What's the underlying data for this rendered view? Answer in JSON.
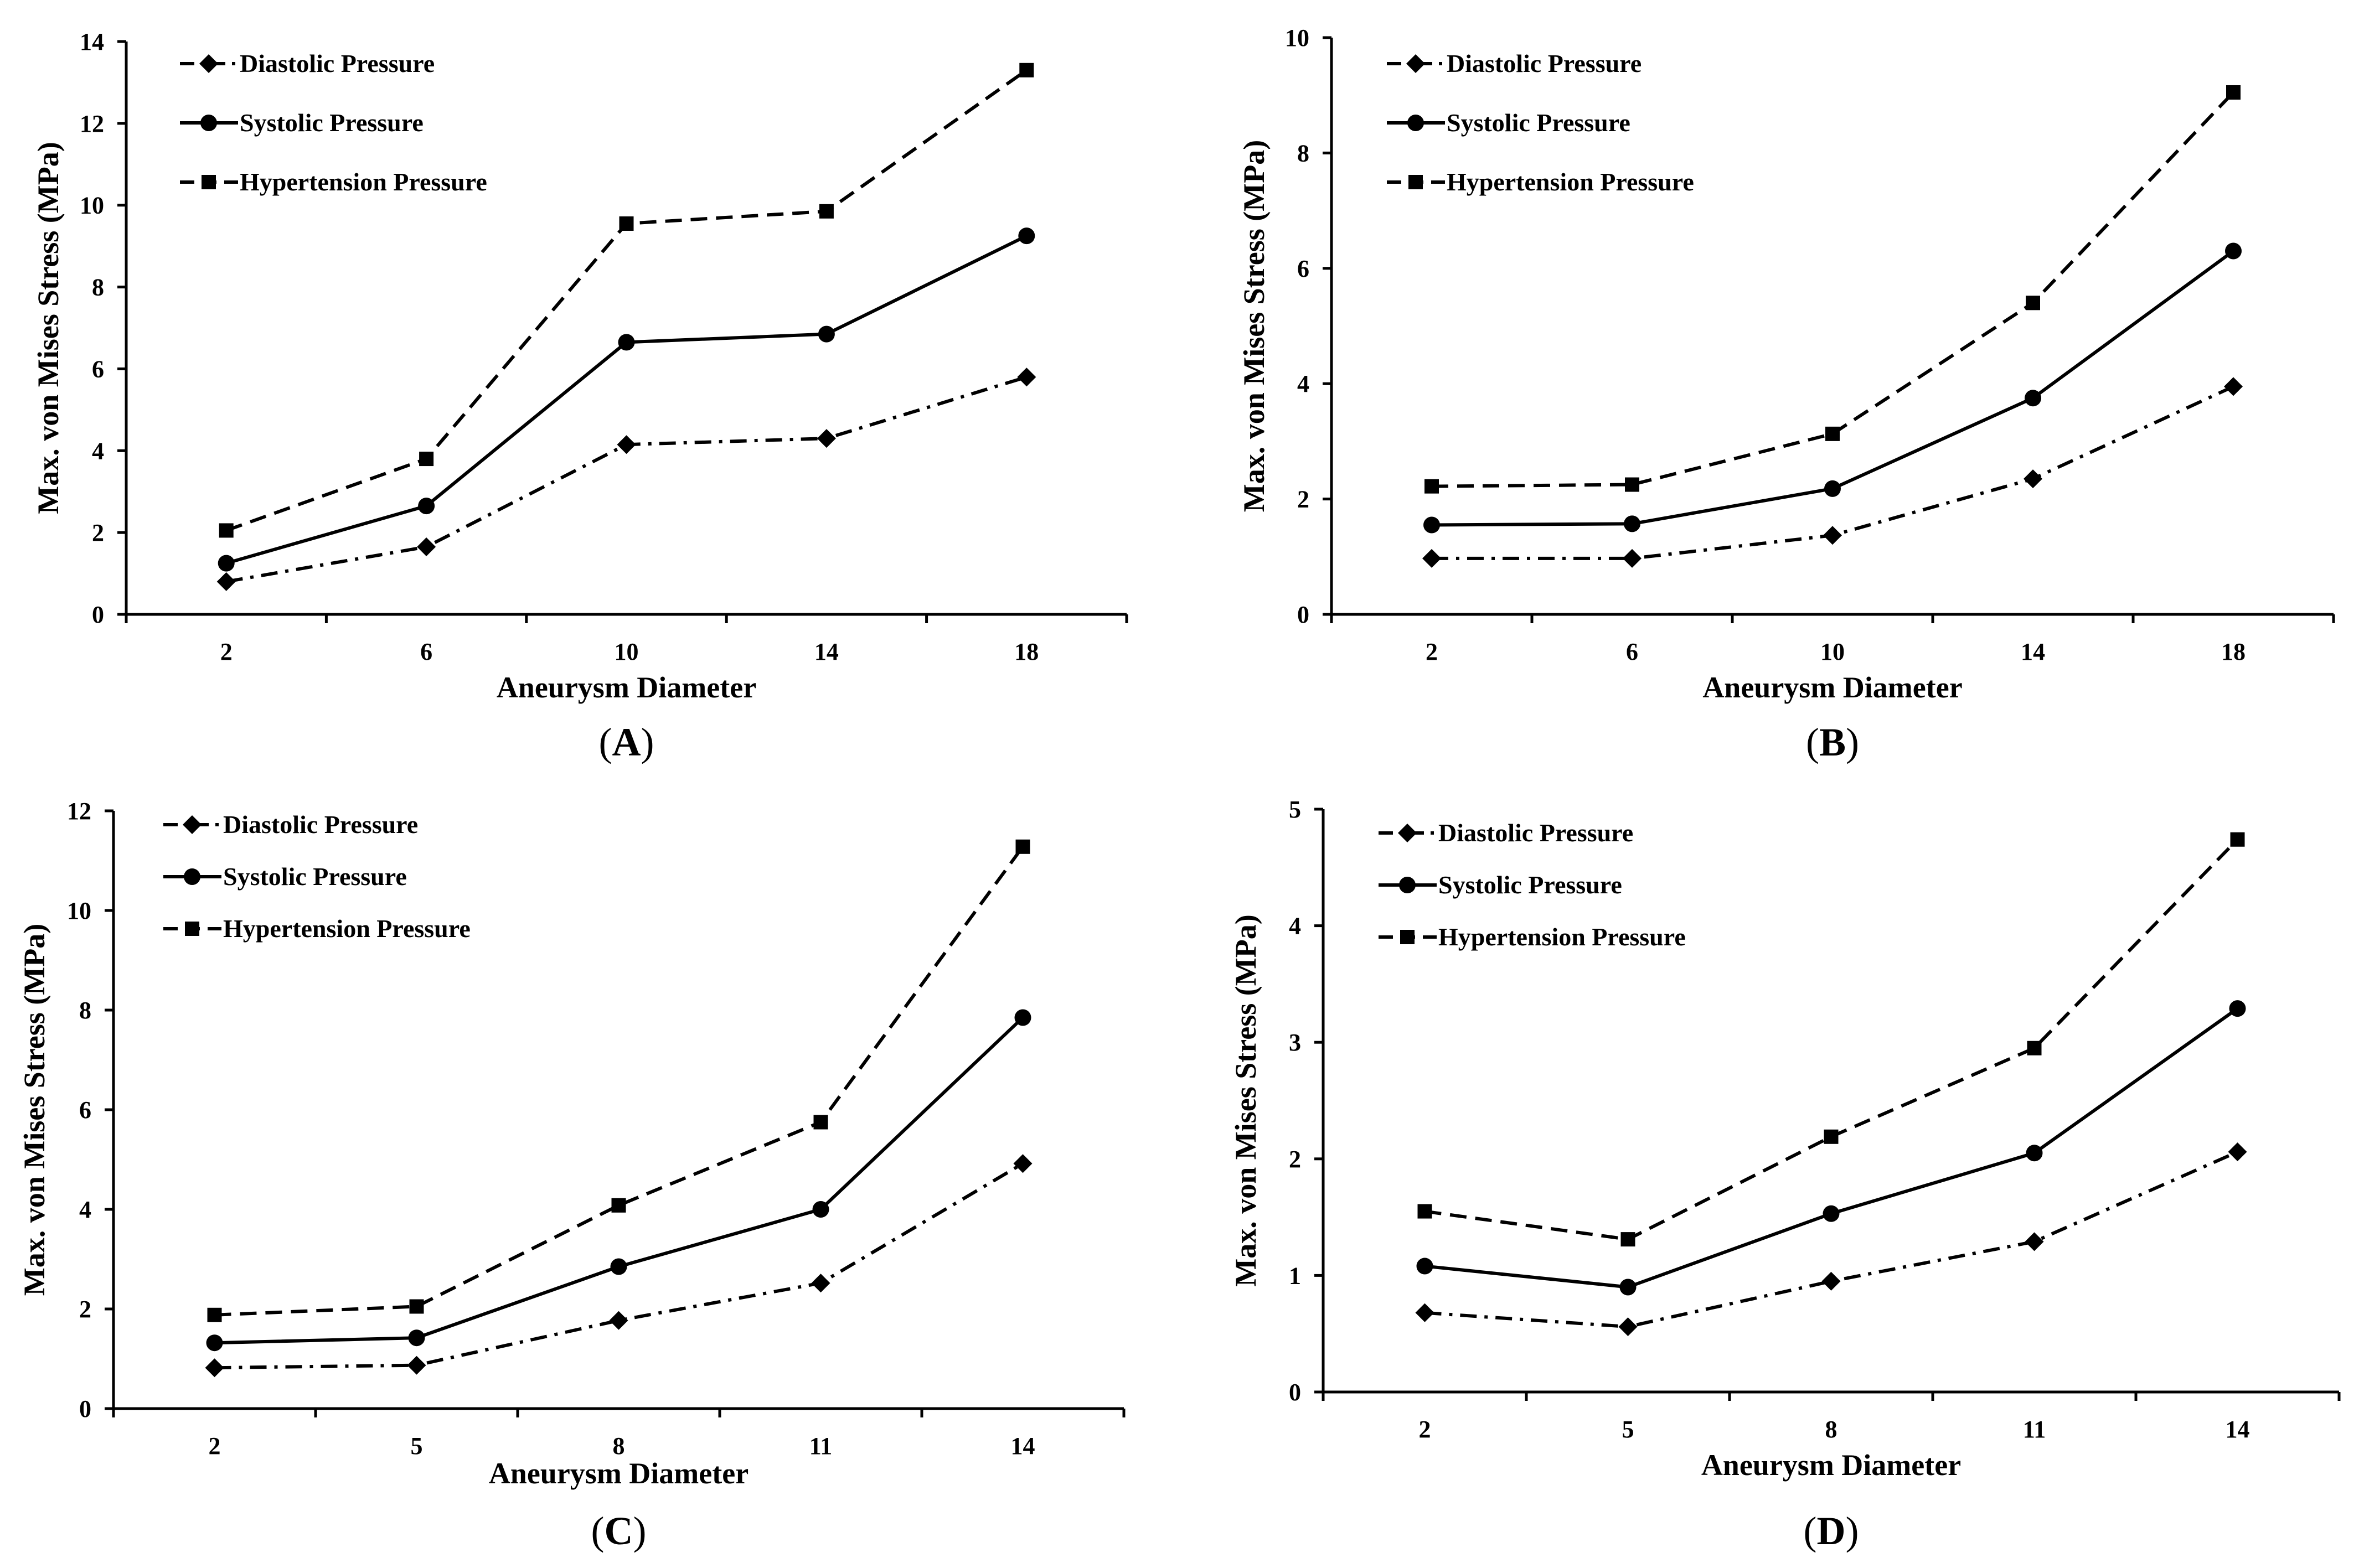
{
  "chart_data": [
    {
      "type": "line",
      "panel_label": "A",
      "xlabel": "Aneurysm Diameter",
      "ylabel": "Max. von Mises Stress (MPa)",
      "categories": [
        "2",
        "6",
        "10",
        "14",
        "18"
      ],
      "ylim": [
        0,
        14
      ],
      "yticks": [
        "0",
        "2",
        "4",
        "6",
        "8",
        "10",
        "12",
        "14"
      ],
      "legend_position": "top-left",
      "series": [
        {
          "name": "Diastolic Pressure",
          "style": "dashdot",
          "marker": "diamond",
          "values": [
            0.8,
            1.65,
            4.15,
            4.3,
            5.8
          ]
        },
        {
          "name": "Systolic Pressure",
          "style": "solid",
          "marker": "circle",
          "values": [
            1.25,
            2.65,
            6.65,
            6.85,
            9.25
          ]
        },
        {
          "name": "Hypertension Pressure",
          "style": "dashed",
          "marker": "square",
          "values": [
            2.05,
            3.8,
            9.55,
            9.85,
            13.3
          ]
        }
      ]
    },
    {
      "type": "line",
      "panel_label": "B",
      "xlabel": "Aneurysm Diameter",
      "ylabel": "Max. von Mises Stress (MPa)",
      "categories": [
        "2",
        "6",
        "10",
        "14",
        "18"
      ],
      "ylim": [
        0,
        10
      ],
      "yticks": [
        "0",
        "2",
        "4",
        "6",
        "8",
        "10"
      ],
      "legend_position": "top-left",
      "series": [
        {
          "name": "Diastolic Pressure",
          "style": "dashdot",
          "marker": "diamond",
          "values": [
            0.97,
            0.97,
            1.37,
            2.35,
            3.95
          ]
        },
        {
          "name": "Systolic Pressure",
          "style": "solid",
          "marker": "circle",
          "values": [
            1.55,
            1.57,
            2.18,
            3.75,
            6.3
          ]
        },
        {
          "name": "Hypertension Pressure",
          "style": "dashed",
          "marker": "square",
          "values": [
            2.22,
            2.25,
            3.13,
            5.4,
            9.05
          ]
        }
      ]
    },
    {
      "type": "line",
      "panel_label": "C",
      "xlabel": "Aneurysm Diameter",
      "ylabel": "Max. von Mises Stress (MPa)",
      "categories": [
        "2",
        "5",
        "8",
        "11",
        "14"
      ],
      "ylim": [
        0,
        12
      ],
      "yticks": [
        "0",
        "2",
        "4",
        "6",
        "8",
        "10",
        "12"
      ],
      "legend_position": "top-left",
      "series": [
        {
          "name": "Diastolic Pressure",
          "style": "dashdot",
          "marker": "diamond",
          "values": [
            0.82,
            0.87,
            1.77,
            2.52,
            4.92
          ]
        },
        {
          "name": "Systolic Pressure",
          "style": "solid",
          "marker": "circle",
          "values": [
            1.32,
            1.42,
            2.85,
            4.0,
            7.85
          ]
        },
        {
          "name": "Hypertension Pressure",
          "style": "dashed",
          "marker": "square",
          "values": [
            1.88,
            2.05,
            4.08,
            5.75,
            11.28
          ]
        }
      ]
    },
    {
      "type": "line",
      "panel_label": "D",
      "xlabel": "Aneurysm Diameter",
      "ylabel": "Max. von Mises Stress (MPa)",
      "categories": [
        "2",
        "5",
        "8",
        "11",
        "14"
      ],
      "ylim": [
        0,
        5
      ],
      "yticks": [
        "0",
        "1",
        "2",
        "3",
        "4",
        "5"
      ],
      "legend_position": "top-left",
      "series": [
        {
          "name": "Diastolic Pressure",
          "style": "dashdot",
          "marker": "diamond",
          "values": [
            0.68,
            0.56,
            0.95,
            1.29,
            2.06
          ]
        },
        {
          "name": "Systolic Pressure",
          "style": "solid",
          "marker": "circle",
          "values": [
            1.08,
            0.9,
            1.53,
            2.05,
            3.29
          ]
        },
        {
          "name": "Hypertension Pressure",
          "style": "dashed",
          "marker": "square",
          "values": [
            1.55,
            1.31,
            2.19,
            2.95,
            4.74
          ]
        }
      ]
    }
  ]
}
